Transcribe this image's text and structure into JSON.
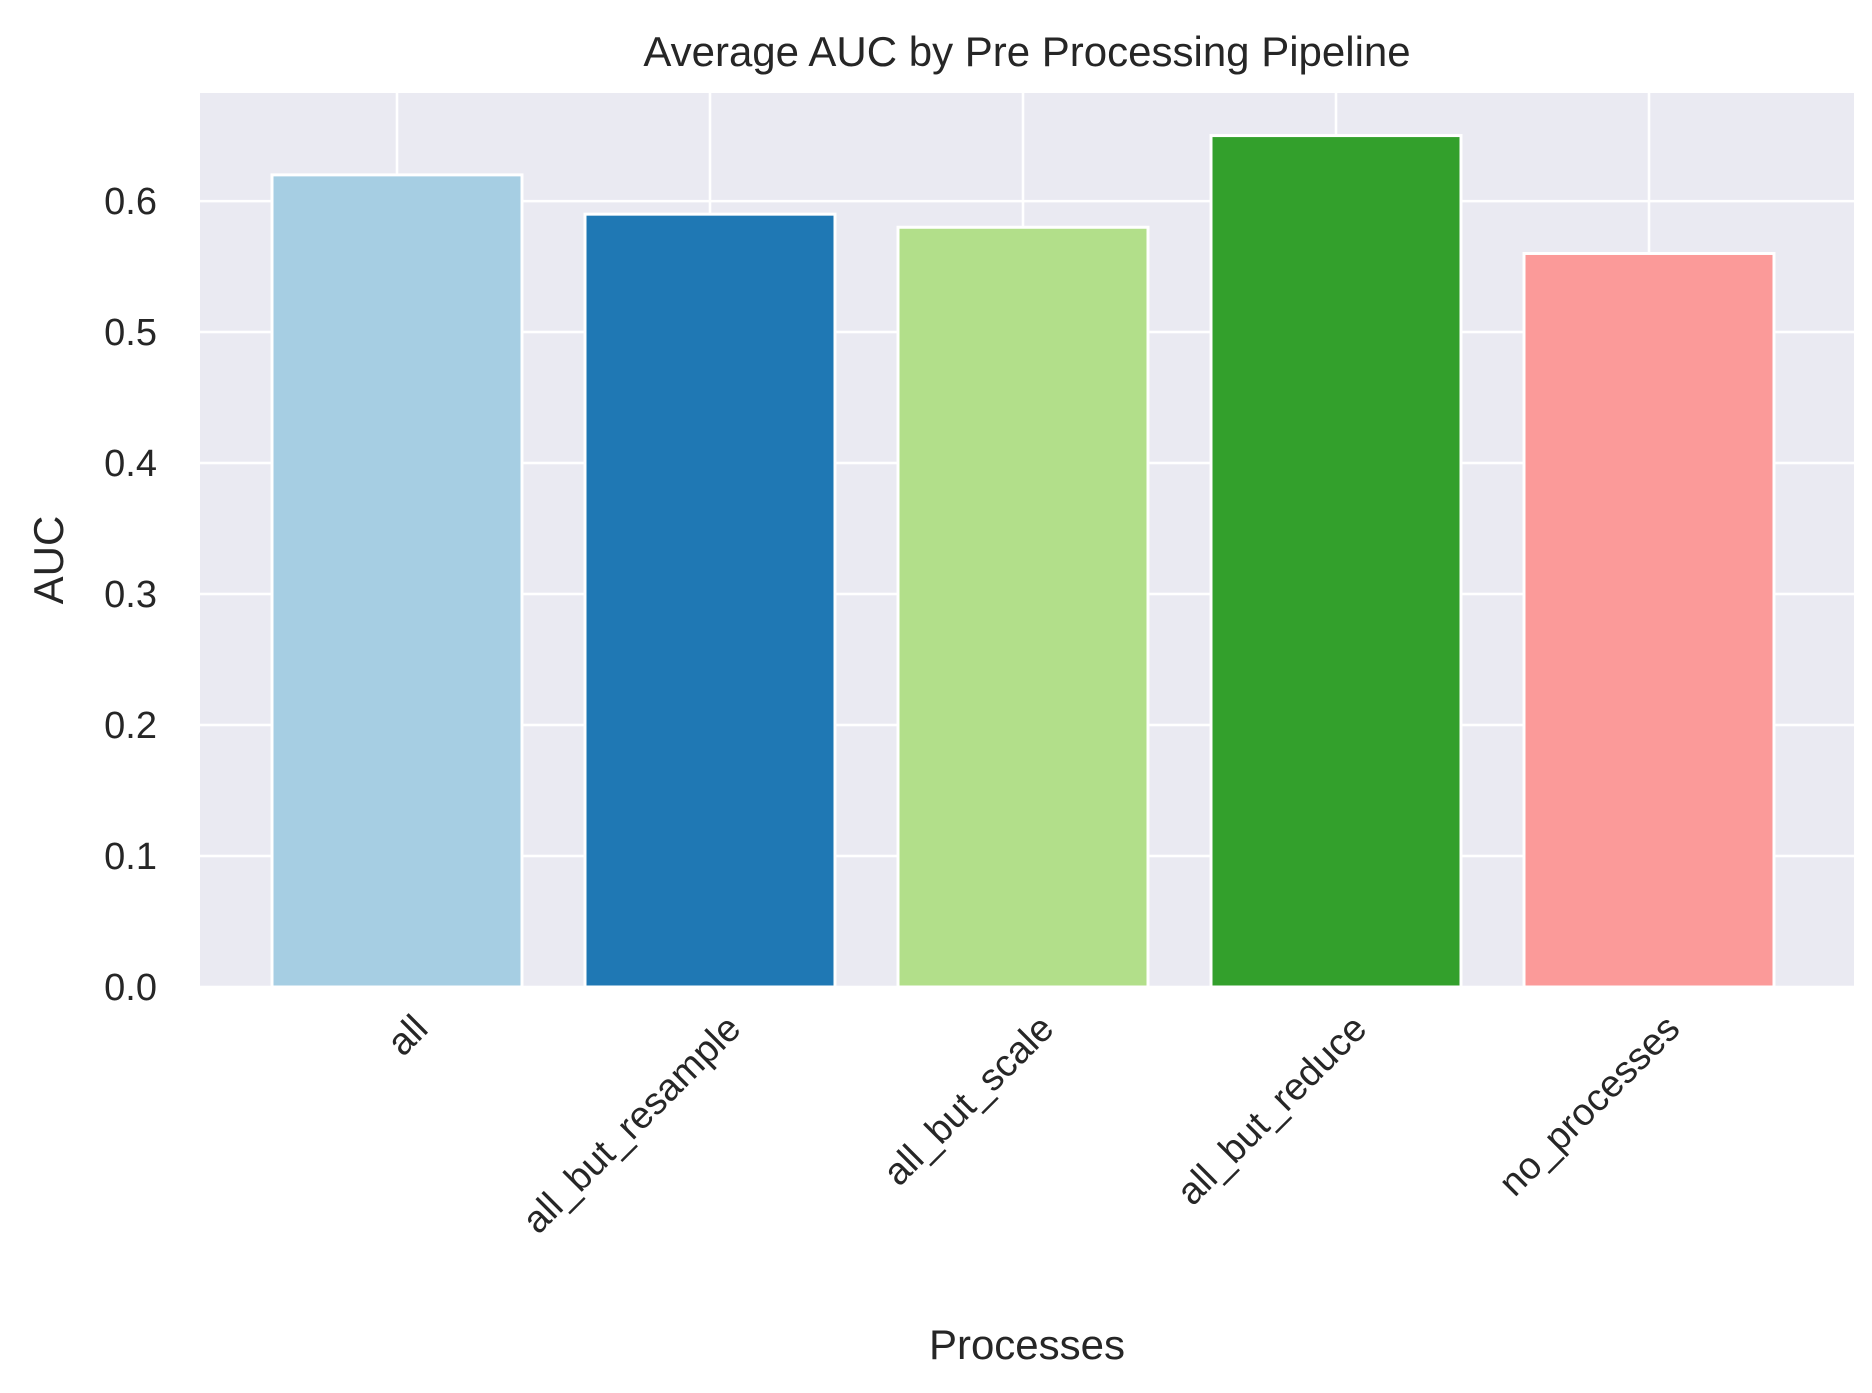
{
  "chart_data": {
    "type": "bar",
    "title": "Average AUC by Pre Processing Pipeline",
    "xlabel": "Processes",
    "ylabel": "AUC",
    "categories": [
      "all",
      "all_but_resample",
      "all_but_scale",
      "all_but_reduce",
      "no_processes"
    ],
    "values": [
      0.62,
      0.59,
      0.58,
      0.65,
      0.56
    ],
    "colors": [
      "#a6cee3",
      "#1f78b4",
      "#b2df8a",
      "#33a02c",
      "#fb9a99"
    ],
    "yticks": [
      "0.0",
      "0.1",
      "0.2",
      "0.3",
      "0.4",
      "0.5",
      "0.6"
    ],
    "ylim": [
      0,
      0.6825
    ],
    "grid": true,
    "background": "#eaeaf2",
    "grid_color": "#ffffff",
    "xtick_rotation": "45 degrees"
  }
}
